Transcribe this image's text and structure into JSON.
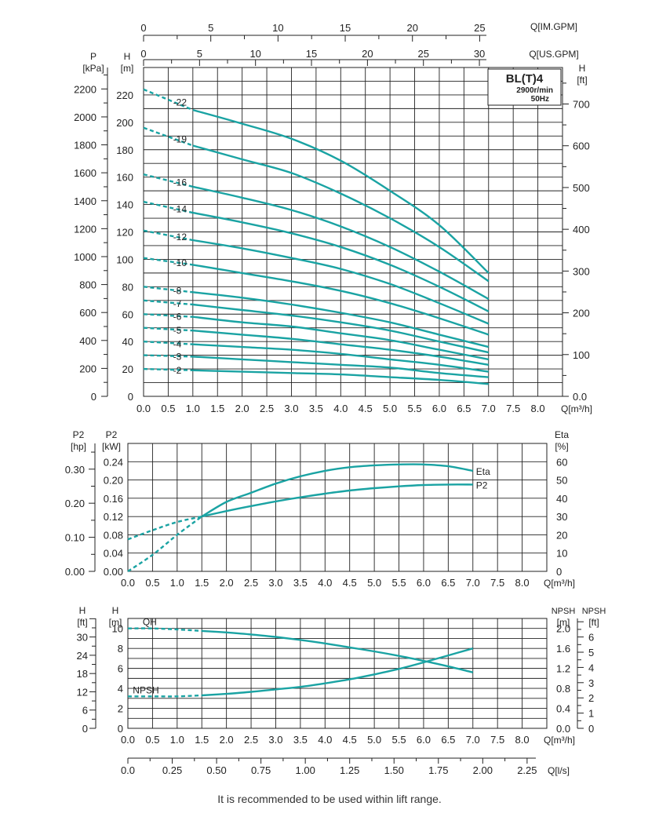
{
  "footer_note": "It is recommended to be used within lift range.",
  "colors": {
    "curve": "#1aa3a3",
    "grid": "#222222",
    "model": "#1aa3a3"
  },
  "chart_data": [
    {
      "type": "line",
      "title": "BL(T)4",
      "subtitle_lines": [
        "2900r/min",
        "50Hz"
      ],
      "x_axes": {
        "bottom": {
          "label": "Q[m³/h]",
          "range": [
            0,
            8.5
          ],
          "ticks": [
            "0.0",
            "0.5",
            "1.0",
            "1.5",
            "2.0",
            "2.5",
            "3.0",
            "3.5",
            "4.0",
            "4.5",
            "5.0",
            "5.5",
            "6.0",
            "6.5",
            "7.0",
            "7.5",
            "8.0"
          ]
        },
        "top_us": {
          "label": "Q[US.GPM]",
          "ticks": [
            "0",
            "5",
            "10",
            "15",
            "20",
            "25",
            "30"
          ]
        },
        "top_im": {
          "label": "Q[IM.GPM]",
          "ticks": [
            "0",
            "5",
            "10",
            "15",
            "20",
            "25"
          ]
        }
      },
      "y_axes": {
        "left_pressure": {
          "label_top": "P",
          "label_unit": "[kPa]",
          "ticks": [
            "0",
            "200",
            "400",
            "600",
            "800",
            "1000",
            "1200",
            "1400",
            "1600",
            "1800",
            "2000",
            "2200"
          ]
        },
        "left_head": {
          "label_top": "H",
          "label_unit": "[m]",
          "range": [
            0,
            240
          ],
          "ticks": [
            "0",
            "20",
            "40",
            "60",
            "80",
            "100",
            "120",
            "140",
            "160",
            "180",
            "200",
            "220"
          ]
        },
        "right_head_ft": {
          "label_top": "H",
          "label_unit": "[ft]",
          "ticks": [
            "0.0",
            "100",
            "200",
            "300",
            "400",
            "500",
            "600",
            "700"
          ]
        }
      },
      "grid": true,
      "solid_from_x": 1.0,
      "series": [
        {
          "name": "-22",
          "x": [
            0,
            1,
            2,
            3,
            4,
            5,
            6,
            7
          ],
          "y": [
            224,
            209,
            199,
            188,
            172,
            150,
            125,
            90
          ]
        },
        {
          "name": "-19",
          "x": [
            0,
            1,
            2,
            3,
            4,
            5,
            6,
            7
          ],
          "y": [
            196,
            183,
            173,
            163,
            148,
            130,
            109,
            84
          ]
        },
        {
          "name": "-16",
          "x": [
            0,
            1,
            2,
            3,
            4,
            5,
            6,
            7
          ],
          "y": [
            162,
            153,
            145,
            136,
            124,
            109,
            91,
            71
          ]
        },
        {
          "name": "-14",
          "x": [
            0,
            1,
            2,
            3,
            4,
            5,
            6,
            7
          ],
          "y": [
            142,
            134,
            127,
            119,
            109,
            96,
            80,
            62
          ]
        },
        {
          "name": "-12",
          "x": [
            0,
            1,
            2,
            3,
            4,
            5,
            6,
            7
          ],
          "y": [
            121,
            114,
            108,
            101,
            93,
            82,
            68,
            53
          ]
        },
        {
          "name": "-10",
          "x": [
            0,
            1,
            2,
            3,
            4,
            5,
            6,
            7
          ],
          "y": [
            101,
            96,
            90,
            84,
            77,
            68,
            57,
            45
          ]
        },
        {
          "name": "-8",
          "x": [
            0,
            1,
            2,
            3,
            4,
            5,
            6,
            7
          ],
          "y": [
            80,
            76,
            72,
            67,
            61,
            54,
            45,
            36
          ]
        },
        {
          "name": "-7",
          "x": [
            0,
            1,
            2,
            3,
            4,
            5,
            6,
            7
          ],
          "y": [
            70,
            67,
            63,
            59,
            54,
            48,
            40,
            32
          ]
        },
        {
          "name": "-6",
          "x": [
            0,
            1,
            2,
            3,
            4,
            5,
            6,
            7
          ],
          "y": [
            60,
            58,
            54,
            51,
            46,
            41,
            34,
            27
          ]
        },
        {
          "name": "-5",
          "x": [
            0,
            1,
            2,
            3,
            4,
            5,
            6,
            7
          ],
          "y": [
            50,
            48,
            45,
            42,
            38,
            34,
            29,
            23
          ]
        },
        {
          "name": "-4",
          "x": [
            0,
            1,
            2,
            3,
            4,
            5,
            6,
            7
          ],
          "y": [
            40,
            38,
            36,
            34,
            31,
            27,
            23,
            18
          ]
        },
        {
          "name": "-3",
          "x": [
            0,
            1,
            2,
            3,
            4,
            5,
            6,
            7
          ],
          "y": [
            30,
            29,
            27,
            25,
            23,
            21,
            17,
            14
          ]
        },
        {
          "name": "-2",
          "x": [
            0,
            1,
            2,
            3,
            4,
            5,
            6,
            7
          ],
          "y": [
            20,
            19,
            18,
            17,
            16,
            14,
            12,
            9
          ]
        }
      ]
    },
    {
      "type": "line",
      "x_axis": {
        "label": "Q[m³/h]",
        "range": [
          0,
          8.5
        ],
        "ticks": [
          "0.0",
          "0.5",
          "1.0",
          "1.5",
          "2.0",
          "2.5",
          "3.0",
          "3.5",
          "4.0",
          "4.5",
          "5.0",
          "5.5",
          "6.0",
          "6.5",
          "7.0",
          "7.5",
          "8.0"
        ]
      },
      "y_axes": {
        "left_hp": {
          "label_top": "P2",
          "label_unit": "[hp]",
          "ticks": [
            "0.00",
            "0.10",
            "0.20",
            "0.30"
          ]
        },
        "left_kw": {
          "label_top": "P2",
          "label_unit": "[kW]",
          "range": [
            0,
            0.28
          ],
          "ticks": [
            "0.00",
            "0.04",
            "0.08",
            "0.12",
            "0.16",
            "0.20",
            "0.24"
          ]
        },
        "right_eta": {
          "label_top": "Eta",
          "label_unit": "[%]",
          "range": [
            0,
            70
          ],
          "ticks": [
            "0",
            "10",
            "20",
            "30",
            "40",
            "50",
            "60"
          ]
        }
      },
      "grid": true,
      "series": [
        {
          "name": "Eta",
          "axis": "right_eta",
          "x": [
            0,
            0.5,
            1,
            1.5,
            2,
            2.5,
            3,
            3.5,
            4,
            4.5,
            5,
            5.5,
            6,
            6.5,
            7
          ],
          "y": [
            0,
            9,
            20,
            30,
            38,
            43,
            48,
            52,
            55,
            57,
            58,
            58.5,
            58.5,
            57.5,
            55
          ],
          "solid_from_x": 1.5
        },
        {
          "name": "P2",
          "axis": "left_kw",
          "x": [
            0,
            0.5,
            1,
            1.5,
            2,
            2.5,
            3,
            3.5,
            4,
            4.5,
            5,
            5.5,
            6,
            6.5,
            7
          ],
          "y": [
            0.07,
            0.09,
            0.108,
            0.12,
            0.132,
            0.143,
            0.153,
            0.162,
            0.17,
            0.177,
            0.182,
            0.186,
            0.189,
            0.19,
            0.19
          ],
          "solid_from_x": 1.5
        }
      ]
    },
    {
      "type": "line",
      "x_axes": {
        "bottom": {
          "label": "Q[m³/h]",
          "range": [
            0,
            8.5
          ],
          "ticks": [
            "0.0",
            "0.5",
            "1.0",
            "1.5",
            "2.0",
            "2.5",
            "3.0",
            "3.5",
            "4.0",
            "4.5",
            "5.0",
            "5.5",
            "6.0",
            "6.5",
            "7.0",
            "7.5",
            "8.0"
          ]
        },
        "lps": {
          "label": "Q[l/s]",
          "ticks": [
            "0.0",
            "0.25",
            "0.50",
            "0.75",
            "1.00",
            "1.25",
            "1.50",
            "1.75",
            "2.00",
            "2.25"
          ]
        }
      },
      "y_axes": {
        "left_ft": {
          "label_top": "H",
          "label_unit": "[ft]",
          "ticks": [
            "0",
            "6",
            "12",
            "18",
            "24",
            "30"
          ]
        },
        "left_m": {
          "label_top": "H",
          "label_unit": "[m]",
          "range": [
            0,
            11
          ],
          "ticks": [
            "0",
            "2",
            "4",
            "6",
            "8",
            "10"
          ]
        },
        "right_npsh_m": {
          "label_top": "NPSH",
          "label_unit": "[m]",
          "ticks": [
            "0.0",
            "0.4",
            "0.8",
            "1.2",
            "1.6",
            "2.0"
          ]
        },
        "right_npsh_ft": {
          "label_top": "NPSH",
          "label_unit": "[ft]",
          "ticks": [
            "0",
            "1",
            "2",
            "3",
            "4",
            "5",
            "6"
          ]
        }
      },
      "grid": true,
      "series": [
        {
          "name": "QH",
          "axis": "left_m",
          "x": [
            0,
            0.5,
            1,
            1.5,
            2,
            2.5,
            3,
            3.5,
            4,
            4.5,
            5,
            5.5,
            6,
            6.5,
            7
          ],
          "y": [
            10,
            10,
            9.9,
            9.75,
            9.6,
            9.4,
            9.15,
            8.85,
            8.5,
            8.1,
            7.7,
            7.25,
            6.75,
            6.2,
            5.6
          ],
          "solid_from_x": 1.5
        },
        {
          "name": "NPSH",
          "axis": "left_m",
          "x": [
            0,
            0.5,
            1,
            1.5,
            2,
            2.5,
            3,
            3.5,
            4,
            4.5,
            5,
            5.5,
            6,
            6.5,
            7
          ],
          "y": [
            3.2,
            3.2,
            3.2,
            3.3,
            3.45,
            3.65,
            3.9,
            4.15,
            4.5,
            4.9,
            5.4,
            5.95,
            6.6,
            7.3,
            8.0
          ],
          "solid_from_x": 1.5
        }
      ]
    }
  ]
}
